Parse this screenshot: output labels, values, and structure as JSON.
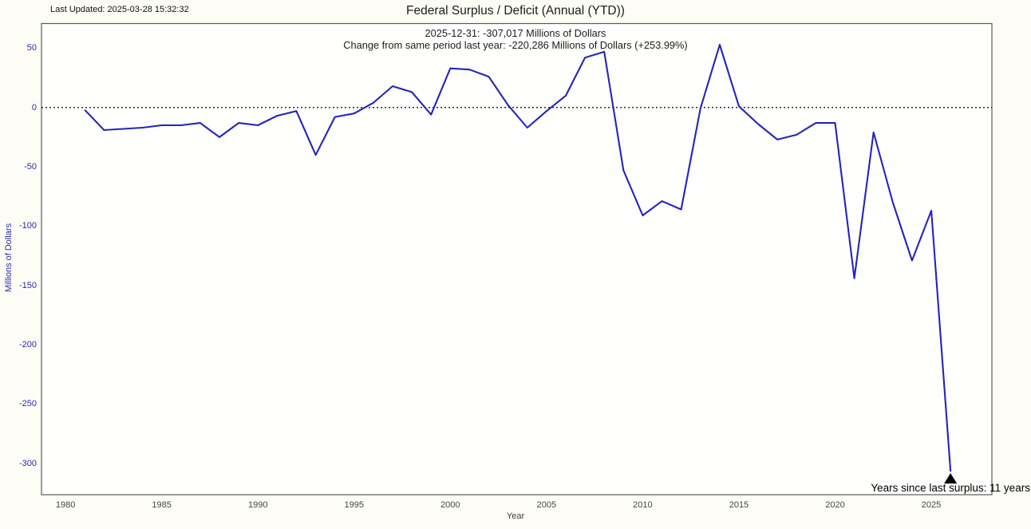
{
  "header": {
    "last_updated": "Last Updated: 2025-03-28 15:32:32",
    "title": "Federal Surplus / Deficit (Annual (YTD))",
    "subtitle_line1": "2025-12-31: -307,017 Millions of Dollars",
    "subtitle_line2": "Change from same period last year: -220,286 Millions of Dollars (+253.99%)"
  },
  "annotation": {
    "text": "Years since last surplus: 11 years",
    "marker_icon": "black-up-triangle"
  },
  "colors": {
    "line": "#2424bc",
    "y_axis_text": "#2a2ab0",
    "x_axis_text": "#454545",
    "plot_border": "#5a5a5a",
    "zero_line": "#000000",
    "background": "#fdfcf5",
    "plot_background": "#fffffd",
    "marker": "#000000"
  },
  "chart_data": {
    "type": "line",
    "title": "Federal Surplus / Deficit (Annual (YTD))",
    "xlabel": "Year",
    "ylabel": "Millions of Dollars",
    "legend": "none",
    "grid": false,
    "zero_line_style": "dotted",
    "plotted_at_period_end": true,
    "x": [
      1980,
      1981,
      1982,
      1983,
      1984,
      1985,
      1986,
      1987,
      1988,
      1989,
      1990,
      1991,
      1992,
      1993,
      1994,
      1995,
      1996,
      1997,
      1998,
      1999,
      2000,
      2001,
      2002,
      2003,
      2004,
      2005,
      2006,
      2007,
      2008,
      2009,
      2010,
      2011,
      2012,
      2013,
      2014,
      2015,
      2016,
      2017,
      2018,
      2019,
      2020,
      2021,
      2022,
      2023,
      2024,
      2025
    ],
    "values": [
      -2,
      -19,
      -18,
      -17,
      -15,
      -15,
      -13,
      -25,
      -13,
      -15,
      -7,
      -3,
      -40,
      -8,
      -5,
      4,
      18,
      13,
      -6,
      33,
      32,
      26,
      2,
      -17,
      -3,
      10,
      42,
      47,
      -53,
      -91,
      -79,
      -86,
      -1,
      53,
      1,
      -14,
      -27,
      -23,
      -13,
      -13,
      -144,
      -21,
      -80,
      -129,
      -87,
      -307
    ],
    "units_note": "axis units; final point 2025-12-31 = -307,017 Millions of Dollars as stated in subtitle",
    "last_point": {
      "date": "2025-12-31",
      "value_label": "-307,017 Millions of Dollars"
    },
    "x_ticks": [
      1980,
      1985,
      1990,
      1995,
      2000,
      2005,
      2010,
      2015,
      2020,
      2025
    ],
    "y_ticks": [
      50,
      0,
      -50,
      -100,
      -150,
      -200,
      -250,
      -300
    ],
    "xlim": [
      1978.75,
      2028.15
    ],
    "ylim": [
      -326.5,
      70.8
    ]
  }
}
